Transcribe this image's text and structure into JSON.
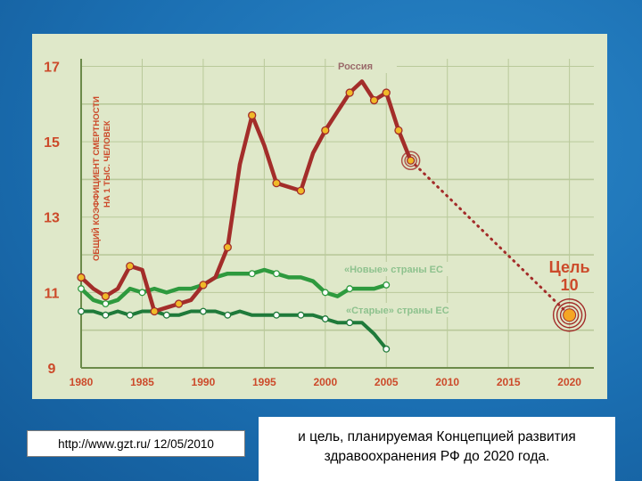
{
  "colors": {
    "background": "#1b6fb2",
    "chart_bg": "#dfe8c9",
    "russia": "#a32d2a",
    "new_eu": "#2e9a3e",
    "old_eu": "#1f7a3a",
    "marker_fill": "#f0b928",
    "target": "#f5a623",
    "axis_text": "#cc4a2a",
    "grid": "#b9c99a"
  },
  "source_text": "http://www.gzt.ru/ 12/05/2010",
  "caption": {
    "line1": "и цель, планируемая Концепцией развития",
    "line2": "здравоохранения РФ до 2020 года."
  },
  "chart_data": {
    "type": "line",
    "ylabel_line1": "ОБЩИЙ КОЭФФИЦИЕНТ СМЕРТНОСТИ",
    "ylabel_line2": "НА 1 ТЫС. ЧЕЛОВЕК",
    "xlim": [
      1980,
      2022
    ],
    "ylim": [
      9,
      17.2
    ],
    "x_ticks": [
      1980,
      1985,
      1990,
      1995,
      2000,
      2005,
      2010,
      2015,
      2020
    ],
    "y_ticks": [
      9,
      11,
      13,
      15,
      17
    ],
    "grid": true,
    "series": [
      {
        "name": "Россия",
        "key": "russia",
        "x": [
          1980,
          1981,
          1982,
          1983,
          1984,
          1985,
          1986,
          1987,
          1988,
          1989,
          1990,
          1991,
          1992,
          1993,
          1994,
          1995,
          1996,
          1997,
          1998,
          1999,
          2000,
          2001,
          2002,
          2003,
          2004,
          2005,
          2006,
          2007
        ],
        "y": [
          11.4,
          11.1,
          10.9,
          11.1,
          11.7,
          11.6,
          10.5,
          10.6,
          10.7,
          10.8,
          11.2,
          11.4,
          12.2,
          14.4,
          15.7,
          14.9,
          13.9,
          13.8,
          13.7,
          14.7,
          15.3,
          15.8,
          16.3,
          16.6,
          16.1,
          16.3,
          15.3,
          14.5
        ]
      },
      {
        "name": "«Новые» страны ЕС",
        "key": "new_eu",
        "x": [
          1980,
          1981,
          1982,
          1983,
          1984,
          1985,
          1986,
          1987,
          1988,
          1989,
          1990,
          1991,
          1992,
          1993,
          1994,
          1995,
          1996,
          1997,
          1998,
          1999,
          2000,
          2001,
          2002,
          2003,
          2004,
          2005
        ],
        "y": [
          11.1,
          10.8,
          10.7,
          10.8,
          11.1,
          11.0,
          11.1,
          11.0,
          11.1,
          11.1,
          11.2,
          11.4,
          11.5,
          11.5,
          11.5,
          11.6,
          11.5,
          11.4,
          11.4,
          11.3,
          11.0,
          10.9,
          11.1,
          11.1,
          11.1,
          11.2
        ]
      },
      {
        "name": "«Старые» страны ЕС",
        "key": "old_eu",
        "x": [
          1980,
          1981,
          1982,
          1983,
          1984,
          1985,
          1986,
          1987,
          1988,
          1989,
          1990,
          1991,
          1992,
          1993,
          1994,
          1995,
          1996,
          1997,
          1998,
          1999,
          2000,
          2001,
          2002,
          2003,
          2004,
          2005
        ],
        "y": [
          10.5,
          10.5,
          10.4,
          10.5,
          10.4,
          10.5,
          10.5,
          10.4,
          10.4,
          10.5,
          10.5,
          10.5,
          10.4,
          10.5,
          10.4,
          10.4,
          10.4,
          10.4,
          10.4,
          10.4,
          10.3,
          10.2,
          10.2,
          10.2,
          9.9,
          9.5
        ]
      }
    ],
    "target": {
      "label": "Цель",
      "value_label": "10",
      "x": 2020,
      "y": 10.4,
      "from_x": 2007,
      "from_y": 14.5
    }
  }
}
